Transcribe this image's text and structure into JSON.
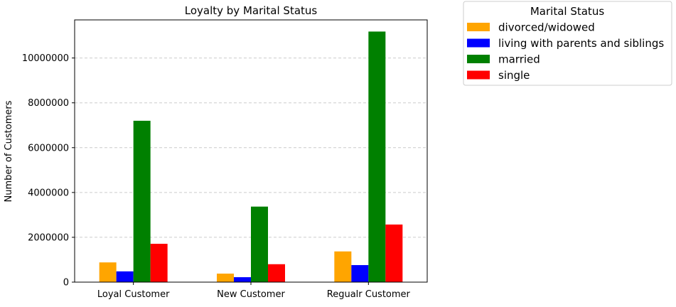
{
  "chart_data": {
    "type": "bar",
    "title": "Loyalty by Marital Status",
    "xlabel": "",
    "ylabel": "Number of Customers",
    "categories": [
      "Loyal Customer",
      "New Customer",
      "Regualr Customer"
    ],
    "series": [
      {
        "name": "divorced/widowed",
        "color": "#ffa500",
        "values": [
          880000,
          380000,
          1370000
        ]
      },
      {
        "name": "living with parents and siblings",
        "color": "#0000ff",
        "values": [
          480000,
          220000,
          760000
        ]
      },
      {
        "name": "married",
        "color": "#008000",
        "values": [
          7200000,
          3370000,
          11180000
        ]
      },
      {
        "name": "single",
        "color": "#ff0000",
        "values": [
          1710000,
          800000,
          2570000
        ]
      }
    ],
    "ylim": [
      0,
      11700000
    ],
    "yticks": [
      0,
      2000000,
      4000000,
      6000000,
      8000000,
      10000000
    ],
    "ytick_labels": [
      "0",
      "2000000",
      "4000000",
      "6000000",
      "8000000",
      "10000000"
    ],
    "grid": "y-dashed",
    "legend": {
      "title": "Marital Status",
      "placement": "outside-top-right"
    }
  }
}
